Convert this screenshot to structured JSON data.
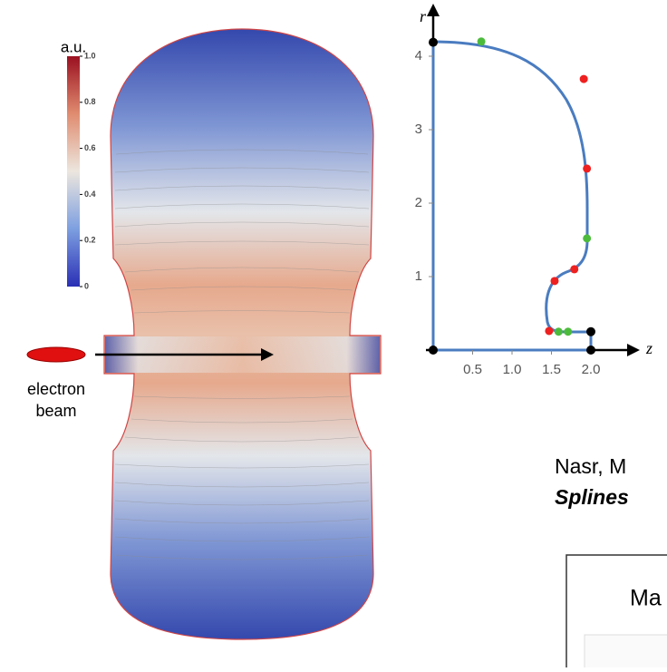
{
  "colorbar": {
    "label": "a.u.",
    "ticks": [
      0,
      0.2,
      0.4,
      0.6,
      0.8,
      {
        "value": 1,
        "label": "1.0"
      }
    ]
  },
  "beam_label": [
    "electron",
    "beam"
  ],
  "spline_plot": {
    "x_label": "z",
    "y_label": "r",
    "xticks": [
      0.5,
      {
        "value": 1,
        "label": "1.0"
      },
      1.5,
      {
        "value": 2,
        "label": "2.0"
      }
    ],
    "yticks": [
      1,
      2,
      3,
      4
    ],
    "points": [
      {
        "color": "green",
        "z": 0.61,
        "r": 4.2
      },
      {
        "color": "red",
        "z": 1.91,
        "r": 3.69
      },
      {
        "color": "red",
        "z": 1.95,
        "r": 2.47
      },
      {
        "color": "green",
        "z": 1.95,
        "r": 1.52
      },
      {
        "color": "red",
        "z": 1.79,
        "r": 1.1
      },
      {
        "color": "red",
        "z": 1.54,
        "r": 0.94
      },
      {
        "color": "red",
        "z": 1.47,
        "r": 0.26
      },
      {
        "color": "green",
        "z": 1.59,
        "r": 0.25
      },
      {
        "color": "green",
        "z": 1.71,
        "r": 0.25
      },
      {
        "color": "black",
        "z": 0,
        "r": 4.19
      },
      {
        "color": "black",
        "z": 0,
        "r": 0
      },
      {
        "color": "black",
        "z": 2,
        "r": 0.25
      },
      {
        "color": "black",
        "z": 2,
        "r": 0
      }
    ]
  },
  "citation": {
    "authors": "Nasr, M",
    "title": "Splines"
  },
  "box": {
    "title": "Ma"
  }
}
